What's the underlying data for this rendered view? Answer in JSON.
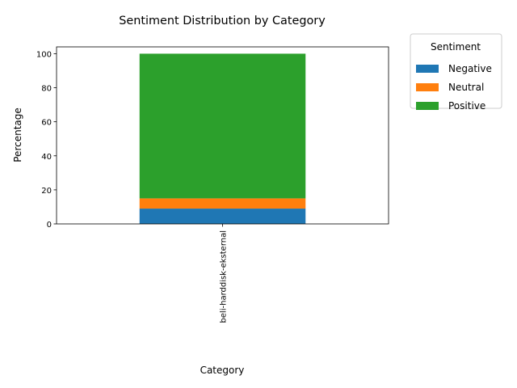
{
  "chart_data": {
    "type": "bar",
    "stacked": true,
    "title": "Sentiment Distribution by Category",
    "xlabel": "Category",
    "ylabel": "Percentage",
    "categories": [
      "beli-harddisk-eksternal"
    ],
    "series": [
      {
        "name": "Negative",
        "values": [
          9
        ],
        "color": "#1f77b4"
      },
      {
        "name": "Neutral",
        "values": [
          6
        ],
        "color": "#ff7f0e"
      },
      {
        "name": "Positive",
        "values": [
          85
        ],
        "color": "#2ca02c"
      }
    ],
    "ylim": [
      0,
      104
    ],
    "yticks": [
      "0",
      "20",
      "40",
      "60",
      "80",
      "100"
    ],
    "legend": {
      "title": "Sentiment",
      "placement": "outside-top-right"
    },
    "grid": false
  }
}
